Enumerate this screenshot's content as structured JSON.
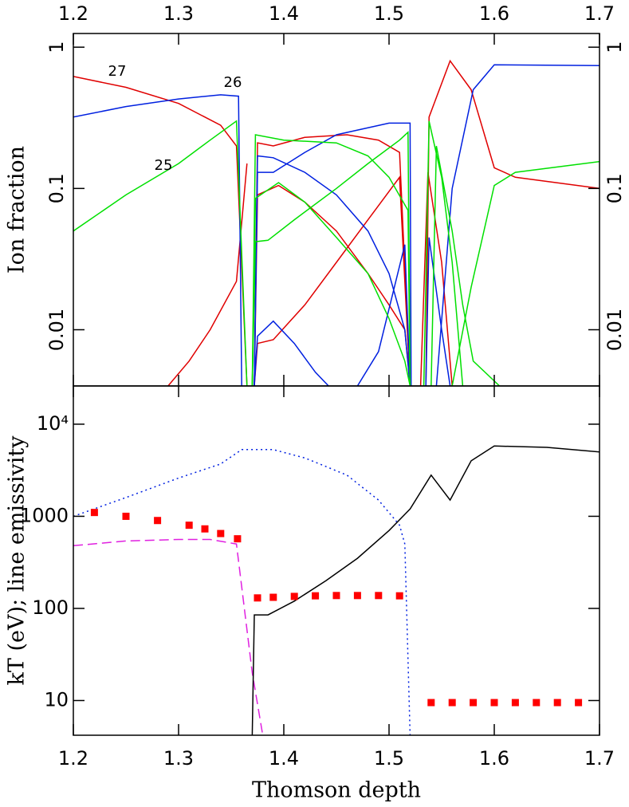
{
  "chart_data": [
    {
      "type": "line",
      "ylabel": "Ion fraction",
      "yscale": "log",
      "xlim": [
        1.2,
        1.7
      ],
      "xticks": [
        1.2,
        1.3,
        1.4,
        1.5,
        1.6,
        1.7
      ],
      "ylim": [
        0.004,
        1.25
      ],
      "yticks": [
        0.01,
        0.1,
        1
      ],
      "annotations": [
        "27",
        "26",
        "25"
      ],
      "series": [
        {
          "color": "#e00000",
          "style": "solid",
          "x": [
            1.2,
            1.25,
            1.3,
            1.34,
            1.355,
            1.365
          ],
          "values": [
            0.62,
            0.52,
            0.4,
            0.28,
            0.2,
            0.004
          ]
        },
        {
          "color": "#e00000",
          "style": "solid",
          "x": [
            1.29,
            1.31,
            1.33,
            1.355,
            1.365
          ],
          "values": [
            0.004,
            0.006,
            0.01,
            0.022,
            0.15
          ]
        },
        {
          "color": "#e00000",
          "style": "solid",
          "x": [
            1.372,
            1.375,
            1.39,
            1.42,
            1.46,
            1.49,
            1.51,
            1.52
          ],
          "values": [
            0.004,
            0.21,
            0.2,
            0.23,
            0.24,
            0.22,
            0.18,
            0.004
          ]
        },
        {
          "color": "#e00000",
          "style": "solid",
          "x": [
            1.372,
            1.375,
            1.395,
            1.42,
            1.45,
            1.48,
            1.5,
            1.515,
            1.52
          ],
          "values": [
            0.004,
            0.09,
            0.105,
            0.08,
            0.05,
            0.025,
            0.015,
            0.01,
            0.004
          ]
        },
        {
          "color": "#e00000",
          "style": "solid",
          "x": [
            1.372,
            1.375,
            1.39,
            1.42,
            1.45,
            1.48,
            1.51,
            1.52
          ],
          "values": [
            0.004,
            0.008,
            0.0085,
            0.015,
            0.03,
            0.06,
            0.12,
            0.004
          ]
        },
        {
          "color": "#e00000",
          "style": "solid",
          "x": [
            1.535,
            1.538,
            1.558,
            1.578,
            1.6,
            1.62,
            1.7
          ],
          "values": [
            0.004,
            0.32,
            0.8,
            0.5,
            0.14,
            0.12,
            0.1
          ]
        },
        {
          "color": "#e00000",
          "style": "solid",
          "x": [
            1.53,
            1.537,
            1.55,
            1.56
          ],
          "values": [
            0.004,
            0.13,
            0.03,
            0.004
          ]
        },
        {
          "color": "#0020e0",
          "style": "solid",
          "x": [
            1.2,
            1.25,
            1.3,
            1.34,
            1.357,
            1.36
          ],
          "values": [
            0.32,
            0.38,
            0.43,
            0.46,
            0.45,
            0.004
          ]
        },
        {
          "color": "#0020e0",
          "style": "solid",
          "x": [
            1.372,
            1.375,
            1.39,
            1.42,
            1.45,
            1.48,
            1.5,
            1.515,
            1.52
          ],
          "values": [
            0.004,
            0.17,
            0.165,
            0.13,
            0.09,
            0.05,
            0.025,
            0.01,
            0.004
          ]
        },
        {
          "color": "#0020e0",
          "style": "solid",
          "x": [
            1.372,
            1.375,
            1.39,
            1.42,
            1.45,
            1.5,
            1.52,
            1.521
          ],
          "values": [
            0.004,
            0.13,
            0.13,
            0.18,
            0.24,
            0.29,
            0.29,
            0.004
          ]
        },
        {
          "color": "#0020e0",
          "style": "solid",
          "x": [
            1.372,
            1.375,
            1.39,
            1.41,
            1.43,
            1.45
          ],
          "values": [
            0.004,
            0.009,
            0.0115,
            0.008,
            0.005,
            0.0035
          ]
        },
        {
          "color": "#0020e0",
          "style": "solid",
          "x": [
            1.47,
            1.49,
            1.515,
            1.52
          ],
          "values": [
            0.004,
            0.007,
            0.04,
            0.004
          ]
        },
        {
          "color": "#0020e0",
          "style": "solid",
          "x": [
            1.535,
            1.538,
            1.55,
            1.558
          ],
          "values": [
            0.004,
            0.045,
            0.01,
            0.004
          ]
        },
        {
          "color": "#0020e0",
          "style": "solid",
          "x": [
            1.545,
            1.56,
            1.58,
            1.6,
            1.7
          ],
          "values": [
            0.004,
            0.1,
            0.5,
            0.75,
            0.74
          ]
        },
        {
          "color": "#00e000",
          "style": "solid",
          "x": [
            1.2,
            1.25,
            1.3,
            1.33,
            1.355,
            1.365
          ],
          "values": [
            0.05,
            0.09,
            0.15,
            0.22,
            0.3,
            0.004
          ]
        },
        {
          "color": "#00e000",
          "style": "solid",
          "x": [
            1.37,
            1.373,
            1.4,
            1.45,
            1.48,
            1.5,
            1.518,
            1.52
          ],
          "values": [
            0.004,
            0.24,
            0.22,
            0.21,
            0.17,
            0.12,
            0.07,
            0.004
          ]
        },
        {
          "color": "#00e000",
          "style": "solid",
          "x": [
            1.37,
            1.373,
            1.395,
            1.42,
            1.45,
            1.48,
            1.5,
            1.515,
            1.52
          ],
          "values": [
            0.004,
            0.085,
            0.11,
            0.08,
            0.045,
            0.025,
            0.012,
            0.006,
            0.004
          ]
        },
        {
          "color": "#00e000",
          "style": "solid",
          "x": [
            1.37,
            1.373,
            1.385,
            1.41,
            1.45,
            1.48,
            1.51,
            1.518,
            1.52
          ],
          "values": [
            0.004,
            0.042,
            0.043,
            0.06,
            0.1,
            0.15,
            0.22,
            0.25,
            0.004
          ]
        },
        {
          "color": "#00e000",
          "style": "solid",
          "x": [
            1.533,
            1.538,
            1.55,
            1.56,
            1.57
          ],
          "values": [
            0.004,
            0.3,
            0.12,
            0.03,
            0.004
          ]
        },
        {
          "color": "#00e000",
          "style": "solid",
          "x": [
            1.54,
            1.545,
            1.56,
            1.57,
            1.58,
            1.605
          ],
          "values": [
            0.004,
            0.2,
            0.05,
            0.015,
            0.006,
            0.004
          ]
        },
        {
          "color": "#00e000",
          "style": "solid",
          "x": [
            1.56,
            1.578,
            1.6,
            1.62,
            1.7
          ],
          "values": [
            0.004,
            0.02,
            0.105,
            0.13,
            0.155
          ]
        }
      ]
    },
    {
      "type": "line",
      "xlabel": "Thomson depth",
      "ylabel": "kT (eV); line emissivity",
      "yscale": "log",
      "xlim": [
        1.2,
        1.7
      ],
      "xticks": [
        1.2,
        1.3,
        1.4,
        1.5,
        1.6,
        1.7
      ],
      "ylim": [
        4.2,
        26000
      ],
      "yticks": [
        10,
        100,
        1000,
        {
          "value": 10000,
          "label": "10⁴"
        }
      ],
      "series": [
        {
          "color": "#0020e0",
          "style": "dotted",
          "x": [
            1.2,
            1.25,
            1.3,
            1.34,
            1.36,
            1.39,
            1.42,
            1.46,
            1.49,
            1.51,
            1.515,
            1.52
          ],
          "values": [
            1000,
            1600,
            2600,
            3700,
            5300,
            5300,
            4300,
            2800,
            1500,
            800,
            500,
            4.2
          ]
        },
        {
          "color": "#e020e0",
          "style": "dashed",
          "x": [
            1.2,
            1.25,
            1.3,
            1.33,
            1.355,
            1.37,
            1.38
          ],
          "values": [
            480,
            540,
            560,
            560,
            500,
            20,
            4.2
          ]
        },
        {
          "color": "#000000",
          "style": "solid",
          "x": [
            1.37,
            1.372,
            1.385,
            1.41,
            1.44,
            1.47,
            1.5,
            1.52,
            1.54,
            1.558,
            1.578,
            1.6,
            1.65,
            1.7
          ],
          "values": [
            4.2,
            85,
            85,
            120,
            200,
            350,
            700,
            1200,
            2800,
            1500,
            4000,
            5800,
            5600,
            5000
          ]
        },
        {
          "color": "#ff0000",
          "style": "markers",
          "x": [
            1.22,
            1.25,
            1.28,
            1.31,
            1.325,
            1.34,
            1.356,
            1.375,
            1.39,
            1.41,
            1.43,
            1.45,
            1.47,
            1.49,
            1.51,
            1.54,
            1.56,
            1.58,
            1.6,
            1.62,
            1.64,
            1.66,
            1.68
          ],
          "values": [
            1100,
            1000,
            900,
            800,
            730,
            650,
            570,
            130,
            132,
            135,
            137,
            138,
            138,
            138,
            137,
            9.5,
            9.5,
            9.5,
            9.5,
            9.5,
            9.5,
            9.5,
            9.5
          ]
        }
      ]
    }
  ]
}
